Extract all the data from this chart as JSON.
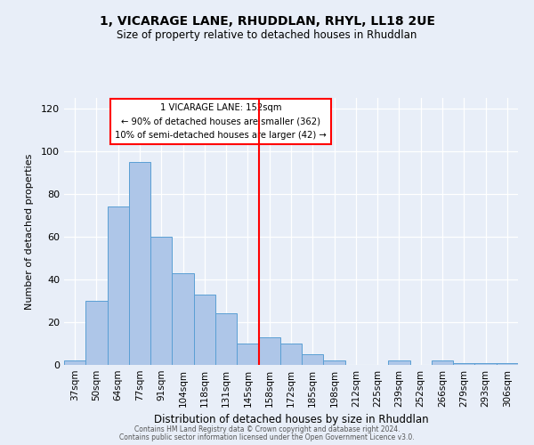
{
  "title": "1, VICARAGE LANE, RHUDDLAN, RHYL, LL18 2UE",
  "subtitle": "Size of property relative to detached houses in Rhuddlan",
  "xlabel": "Distribution of detached houses by size in Rhuddlan",
  "ylabel": "Number of detached properties",
  "bar_labels": [
    "37sqm",
    "50sqm",
    "64sqm",
    "77sqm",
    "91sqm",
    "104sqm",
    "118sqm",
    "131sqm",
    "145sqm",
    "158sqm",
    "172sqm",
    "185sqm",
    "198sqm",
    "212sqm",
    "225sqm",
    "239sqm",
    "252sqm",
    "266sqm",
    "279sqm",
    "293sqm",
    "306sqm"
  ],
  "bar_values": [
    2,
    30,
    74,
    95,
    60,
    43,
    33,
    24,
    10,
    13,
    10,
    5,
    2,
    0,
    0,
    2,
    0,
    2,
    1,
    1,
    1
  ],
  "bar_color": "#aec6e8",
  "bar_edge_color": "#5a9fd4",
  "vline_color": "red",
  "annotation_box_text": "1 VICARAGE LANE: 152sqm\n← 90% of detached houses are smaller (362)\n10% of semi-detached houses are larger (42) →",
  "ylim": [
    0,
    125
  ],
  "yticks": [
    0,
    20,
    40,
    60,
    80,
    100,
    120
  ],
  "background_color": "#e8eef8",
  "footer_line1": "Contains HM Land Registry data © Crown copyright and database right 2024.",
  "footer_line2": "Contains public sector information licensed under the Open Government Licence v3.0."
}
